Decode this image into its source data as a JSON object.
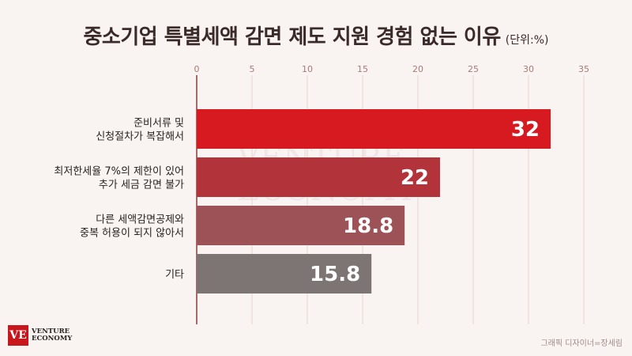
{
  "title": "중소기업 특별세액 감면 제도 지원 경험 없는 이유",
  "unit": "(단위:%)",
  "chart_data": {
    "type": "bar",
    "orientation": "horizontal",
    "categories": [
      [
        "준비서류 및",
        "신청절차가 복잡해서"
      ],
      [
        "최저한세율 7%의 제한이 있어",
        "추가 세금 감면 불가"
      ],
      [
        "다른 세액감면공제와",
        "중복 허용이 되지 않아서"
      ],
      [
        "기타"
      ]
    ],
    "values": [
      32,
      22,
      18.8,
      15.8
    ],
    "value_labels": [
      "32",
      "22",
      "18.8",
      "15.8"
    ],
    "xlim": [
      0,
      35
    ],
    "ticks": [
      0,
      5,
      10,
      15,
      20,
      25,
      30,
      35
    ],
    "tick_labels": [
      "0",
      "5",
      "10",
      "15",
      "20",
      "25",
      "30",
      "35"
    ],
    "grid": true,
    "colors": [
      "#d71920",
      "#b2343a",
      "#9c5257",
      "#7d7474"
    ]
  },
  "watermark": [
    "VENTURE",
    "ECONOMY"
  ],
  "logo": {
    "mark": "VE",
    "line1": "VENTURE",
    "line2": "ECONOMY"
  },
  "credit": "그래픽 디자이너=장세림"
}
